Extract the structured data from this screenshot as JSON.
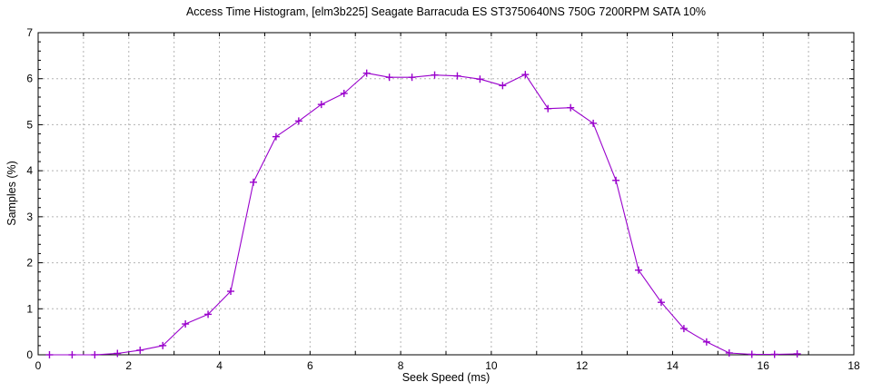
{
  "chart_data": {
    "type": "line",
    "title": "Access Time Histogram, [elm3b225] Seagate Barracuda ES ST3750640NS 750G 7200RPM SATA 10%",
    "xlabel": "Seek Speed (ms)",
    "ylabel": "Samples (%)",
    "xlim": [
      0,
      18
    ],
    "ylim": [
      0,
      7
    ],
    "xticks_labeled": [
      0,
      2,
      4,
      6,
      8,
      10,
      12,
      14,
      16,
      18
    ],
    "yticks_labeled": [
      0,
      1,
      2,
      3,
      4,
      5,
      6,
      7
    ],
    "x_grid_step": 1,
    "y_grid_step": 1,
    "y_minor_tick_step": 0.2,
    "grid": "dotted",
    "legend_position": "none",
    "series": [
      {
        "name": "samples-percent",
        "marker": "plus",
        "color": "#9900cc",
        "x": [
          0.25,
          0.75,
          1.25,
          1.75,
          2.25,
          2.75,
          3.25,
          3.75,
          4.25,
          4.75,
          5.25,
          5.75,
          6.25,
          6.75,
          7.25,
          7.75,
          8.25,
          8.75,
          9.25,
          9.75,
          10.25,
          10.75,
          11.25,
          11.75,
          12.25,
          12.75,
          13.25,
          13.75,
          14.25,
          14.75,
          15.25,
          15.75,
          16.25,
          16.75
        ],
        "y": [
          0,
          0,
          0,
          0.03,
          0.1,
          0.2,
          0.67,
          0.88,
          1.38,
          3.75,
          4.74,
          5.08,
          5.44,
          5.68,
          6.12,
          6.03,
          6.03,
          6.08,
          6.06,
          5.99,
          5.85,
          6.09,
          5.35,
          5.37,
          5.03,
          3.79,
          1.84,
          1.14,
          0.57,
          0.28,
          0.04,
          0.01,
          0.01,
          0.02
        ]
      }
    ]
  },
  "colors": {
    "line": "#9900cc",
    "grid": "#b3b3b3",
    "axis": "#000000",
    "background": "#ffffff"
  }
}
